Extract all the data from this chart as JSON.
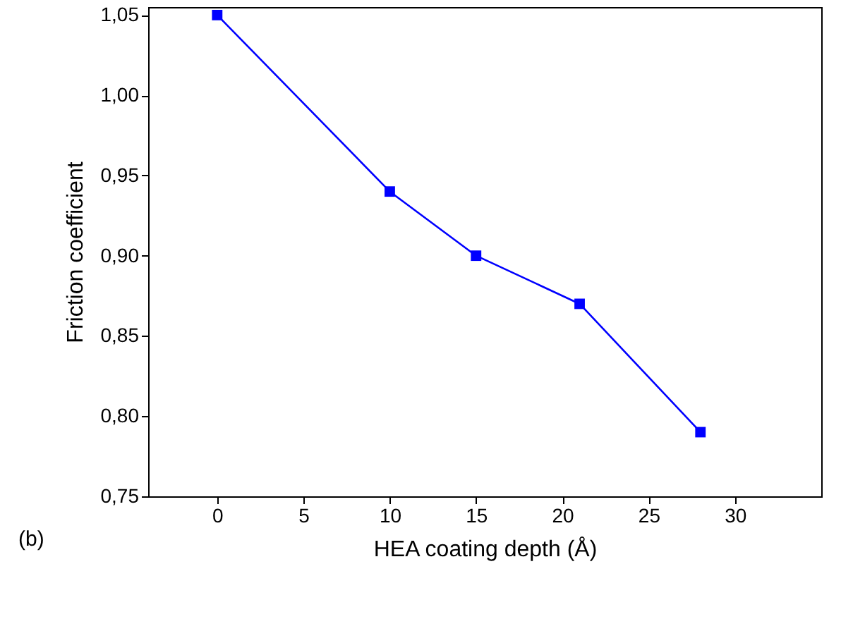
{
  "chart_data": {
    "type": "line",
    "xlabel": "HEA coating depth (Å)",
    "ylabel": "Friction coefficient",
    "x": [
      0,
      10,
      15,
      21,
      28
    ],
    "series": [
      {
        "color": "#0000ff",
        "values": [
          1.05,
          0.94,
          0.9,
          0.87,
          0.79
        ]
      }
    ],
    "xlim": [
      -4,
      35
    ],
    "xticks": [
      0,
      5,
      10,
      15,
      20,
      25,
      30
    ],
    "ylim": [
      0.75,
      1.055
    ],
    "yticks": [
      {
        "value": 0.75,
        "label": "0,75"
      },
      {
        "value": 0.8,
        "label": "0,80"
      },
      {
        "value": 0.85,
        "label": "0,85"
      },
      {
        "value": 0.9,
        "label": "0,90"
      },
      {
        "value": 0.95,
        "label": "0,95"
      },
      {
        "value": 1.0,
        "label": "1,00"
      },
      {
        "value": 1.05,
        "label": "1,05"
      }
    ],
    "annotations": [
      "(b)"
    ],
    "marker": "square",
    "line_style": "solid",
    "grid": false
  }
}
